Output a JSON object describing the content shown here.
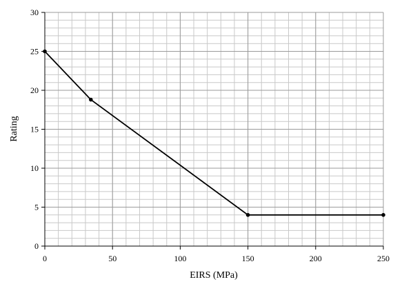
{
  "chart_data": {
    "type": "line",
    "title": "",
    "xlabel": "EIRS (MPa)",
    "ylabel": "Rating",
    "xlim": [
      0,
      250
    ],
    "ylim": [
      0,
      30
    ],
    "x_ticks": [
      0,
      50,
      100,
      150,
      200,
      250
    ],
    "y_ticks": [
      0,
      5,
      10,
      15,
      20,
      25,
      30
    ],
    "grid": true,
    "minor_grid": {
      "x_step": 10,
      "y_step": 1
    },
    "series": [
      {
        "color": "#000000",
        "x": [
          0,
          34,
          150,
          250
        ],
        "y": [
          25,
          18.8,
          4,
          4
        ]
      }
    ]
  }
}
